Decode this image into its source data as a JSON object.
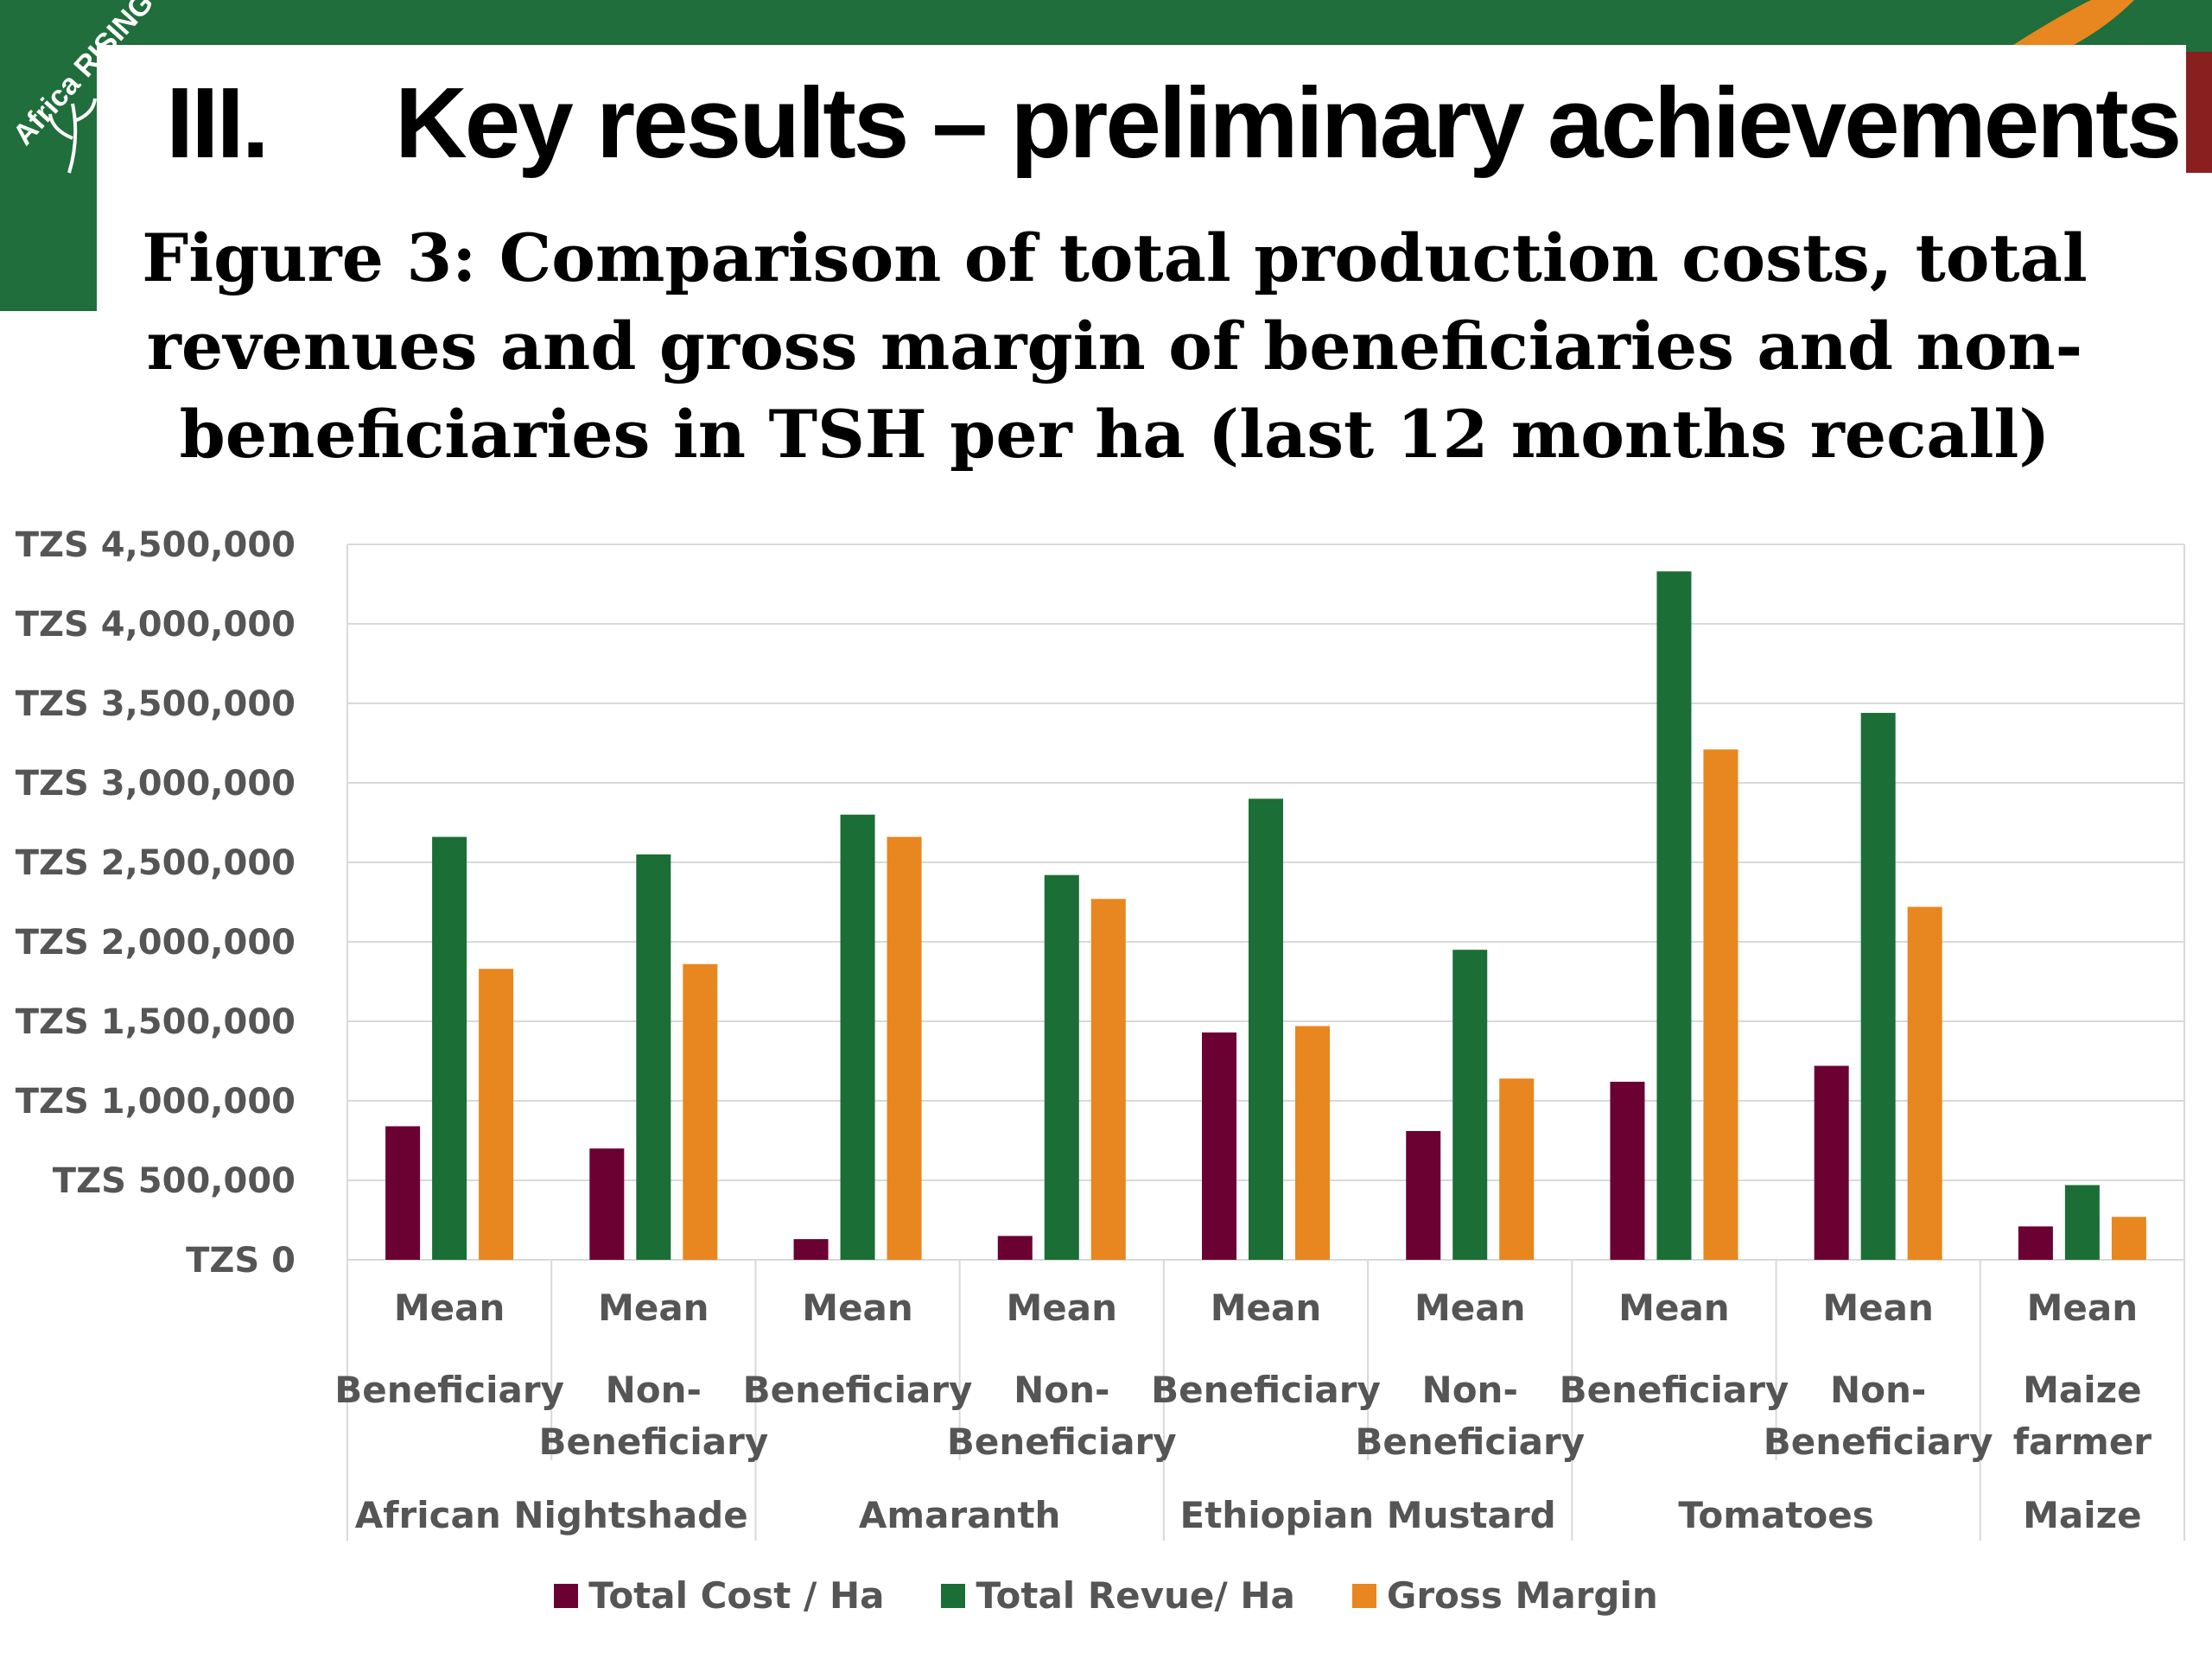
{
  "header": {
    "brand_text": "Africa RISING",
    "section_number": "III.",
    "section_title": "Key results – preliminary achievements",
    "brand_green": "#1f6e3b",
    "brand_orange": "#e8861f"
  },
  "figure_title_lines": [
    "Figure 3: Comparison of total production costs, total",
    "revenues and gross margin of beneficiaries and non-",
    "beneficiaries in TSH per ha (last 12 months recall)"
  ],
  "chart_data": {
    "type": "bar",
    "title": "Figure 3: Comparison of total production costs, total revenues and gross margin of beneficiaries and non-beneficiaries in TSH per ha (last 12 months recall)",
    "ylim": [
      0,
      4500000
    ],
    "y_ticks": [
      {
        "value": 0,
        "label": "TZS 0"
      },
      {
        "value": 500000,
        "label": "TZS 500,000"
      },
      {
        "value": 1000000,
        "label": "TZS 1,000,000"
      },
      {
        "value": 1500000,
        "label": "TZS 1,500,000"
      },
      {
        "value": 2000000,
        "label": "TZS 2,000,000"
      },
      {
        "value": 2500000,
        "label": "TZS 2,500,000"
      },
      {
        "value": 3000000,
        "label": "TZS 3,000,000"
      },
      {
        "value": 3500000,
        "label": "TZS 3,500,000"
      },
      {
        "value": 4000000,
        "label": "TZS 4,000,000"
      },
      {
        "value": 4500000,
        "label": "TZS 4,500,000"
      }
    ],
    "grid": true,
    "legend_position": "bottom",
    "category_levels": {
      "stat": [
        "Mean",
        "Mean",
        "Mean",
        "Mean",
        "Mean",
        "Mean",
        "Mean",
        "Mean",
        "Mean"
      ],
      "group": [
        [
          "Beneficiary"
        ],
        [
          "Non-",
          "Beneficiary"
        ],
        [
          "Beneficiary"
        ],
        [
          "Non-",
          "Beneficiary"
        ],
        [
          "Beneficiary"
        ],
        [
          "Non-",
          "Beneficiary"
        ],
        [
          "Beneficiary"
        ],
        [
          "Non-",
          "Beneficiary"
        ],
        [
          "Maize",
          "farmer"
        ]
      ],
      "crops": [
        {
          "name": "African Nightshade",
          "count": 2
        },
        {
          "name": "Amaranth",
          "count": 2
        },
        {
          "name": "Ethiopian Mustard",
          "count": 2
        },
        {
          "name": "Tomatoes",
          "count": 2
        },
        {
          "name": "Maize",
          "count": 1
        }
      ]
    },
    "series": [
      {
        "name": "Total Cost / Ha",
        "color": "#6b0032",
        "values": [
          840000,
          700000,
          130000,
          150000,
          1430000,
          810000,
          1120000,
          1220000,
          210000
        ]
      },
      {
        "name": "Total Revue/ Ha",
        "color": "#1b6e36",
        "values": [
          2660000,
          2550000,
          2800000,
          2420000,
          2900000,
          1950000,
          4330000,
          3440000,
          470000
        ]
      },
      {
        "name": "Gross Margin",
        "color": "#e8861f",
        "values": [
          1830000,
          1860000,
          2660000,
          2270000,
          1470000,
          1140000,
          3210000,
          2220000,
          270000
        ]
      }
    ]
  }
}
